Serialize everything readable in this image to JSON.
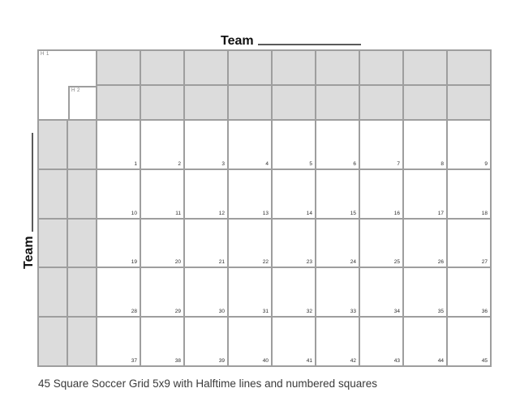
{
  "title": {
    "team_label": "Team"
  },
  "left_axis": {
    "team_label": "Team"
  },
  "grid": {
    "h1_label": "H 1",
    "h2_label": "H 2",
    "rows": 5,
    "cols": 9,
    "numbers": [
      1,
      2,
      3,
      4,
      5,
      6,
      7,
      8,
      9,
      10,
      11,
      12,
      13,
      14,
      15,
      16,
      17,
      18,
      19,
      20,
      21,
      22,
      23,
      24,
      25,
      26,
      27,
      28,
      29,
      30,
      31,
      32,
      33,
      34,
      35,
      36,
      37,
      38,
      39,
      40,
      41,
      42,
      43,
      44,
      45
    ]
  },
  "caption": {
    "text": "45 Square Soccer Grid 5x9 with Halftime lines and numbered squares"
  },
  "colors": {
    "header_fill": "#dcdcdc",
    "cell_fill": "#ffffff",
    "grid_line": "#9e9e9e",
    "number_text": "#2b2b2b",
    "halftime_label_text": "#7a7a7a",
    "blank_line": "#5a5a5a",
    "caption_text": "#3a3a3a"
  }
}
